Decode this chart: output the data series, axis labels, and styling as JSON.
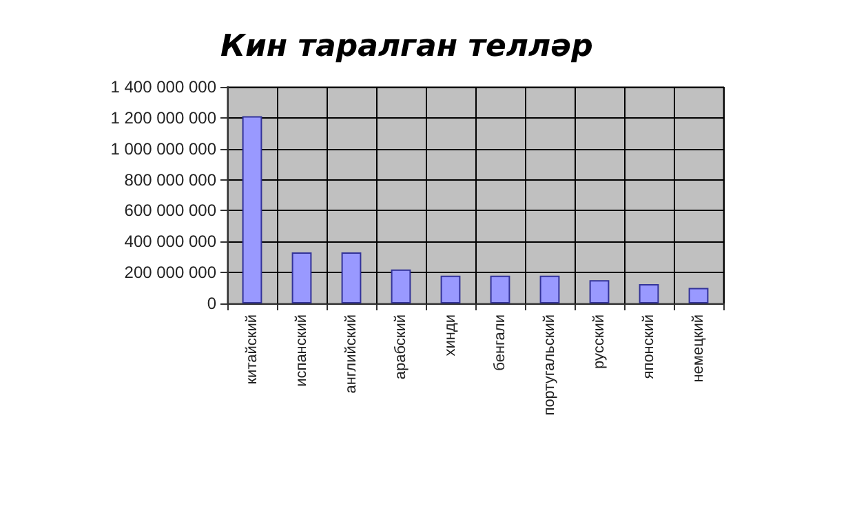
{
  "chart_data": {
    "type": "bar",
    "title": "Кин таралган телләр",
    "categories": [
      "китайский",
      "испанский",
      "английский",
      "арабский",
      "хинди",
      "бенгали",
      "португальский",
      "русский",
      "японский",
      "немецкий"
    ],
    "values": [
      1210000000,
      330000000,
      330000000,
      220000000,
      180000000,
      180000000,
      180000000,
      150000000,
      125000000,
      100000000
    ],
    "color": "#9999ff",
    "ylim": [
      0,
      1400000000
    ],
    "yticks": [
      0,
      200000000,
      400000000,
      600000000,
      800000000,
      1000000000,
      1200000000,
      1400000000
    ],
    "grid": true
  }
}
